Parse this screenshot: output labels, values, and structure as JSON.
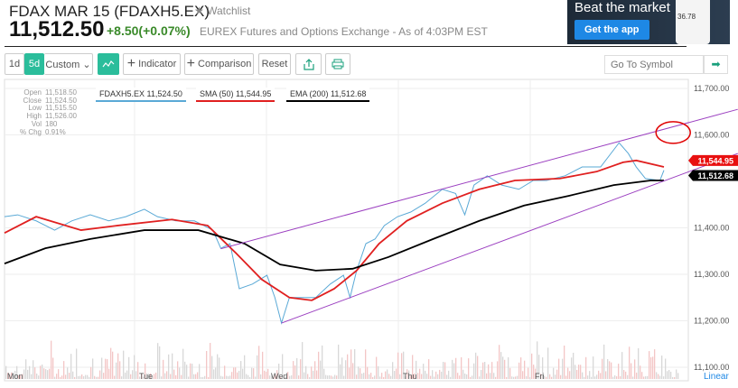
{
  "header": {
    "title": "FDAX MAR 15 (FDAXH5.EX)",
    "watchlist": "★ Watchlist",
    "price": "11,512.50",
    "change": "+8.50(+0.07%)",
    "exchange": "EUREX Futures and Options Exchange - As of 4:03PM EST"
  },
  "ad": {
    "headline": "Beat the market",
    "button": "Get the app",
    "phone_value": "36.78"
  },
  "toolbar": {
    "range_1d": "1d",
    "range_5d": "5d",
    "custom": "Custom ⌄",
    "chart_type_icon": "line-chart-icon",
    "indicator": "Indicator",
    "comparison": "Comparison",
    "reset": "Reset",
    "share_icon": "share-icon",
    "print_icon": "print-icon",
    "goto_placeholder": "Go To Symbol",
    "go_icon": "arrow-right-icon"
  },
  "ohlc": [
    {
      "k": "Open",
      "v": "11,518.50"
    },
    {
      "k": "Close",
      "v": "11,524.50"
    },
    {
      "k": "Low",
      "v": "11,515.50"
    },
    {
      "k": "High",
      "v": "11,526.00"
    },
    {
      "k": "Vol",
      "v": "180"
    },
    {
      "k": "% Chg",
      "v": "0.91%"
    }
  ],
  "legend": {
    "price": "FDAXH5.EX 11,524.50",
    "sma": "SMA (50) 11,544.95",
    "ema": "EMA (200) 11,512.68"
  },
  "scale_label": "Linear",
  "chart_data": {
    "type": "line",
    "x_unit": "days from Mon",
    "xticks": [
      {
        "t": 0,
        "label": "Mon"
      },
      {
        "t": 1,
        "label": "Tue"
      },
      {
        "t": 2,
        "label": "Wed"
      },
      {
        "t": 3,
        "label": "Thu"
      },
      {
        "t": 4,
        "label": "Fri"
      }
    ],
    "yticks": [
      11100,
      11200,
      11300,
      11400,
      11600,
      11700
    ],
    "ytick_labels": [
      "11,100.00",
      "11,200.00",
      "11,300.00",
      "11,400.00",
      "11,600.00",
      "11,700.00"
    ],
    "ylim": [
      11085,
      11720
    ],
    "xlim": [
      0,
      5.2
    ],
    "grid": true,
    "colors": {
      "price": "#5aa9d6",
      "sma": "#e02020",
      "ema": "#000000",
      "channel": "#9b3fc0",
      "annotation": "#e00000"
    },
    "series": [
      {
        "name": "FDAXH5.EX",
        "key": "price",
        "points": [
          [
            0,
            11424
          ],
          [
            0.1,
            11428
          ],
          [
            0.24,
            11415
          ],
          [
            0.38,
            11395
          ],
          [
            0.51,
            11415
          ],
          [
            0.65,
            11428
          ],
          [
            0.79,
            11415
          ],
          [
            0.92,
            11424
          ],
          [
            1.06,
            11440
          ],
          [
            1.16,
            11424
          ],
          [
            1.3,
            11415
          ],
          [
            1.44,
            11415
          ],
          [
            1.58,
            11395
          ],
          [
            1.64,
            11356
          ],
          [
            1.71,
            11366
          ],
          [
            1.78,
            11269
          ],
          [
            1.88,
            11279
          ],
          [
            1.99,
            11298
          ],
          [
            2.05,
            11250
          ],
          [
            2.1,
            11195
          ],
          [
            2.16,
            11250
          ],
          [
            2.26,
            11250
          ],
          [
            2.36,
            11250
          ],
          [
            2.47,
            11279
          ],
          [
            2.57,
            11298
          ],
          [
            2.62,
            11250
          ],
          [
            2.67,
            11308
          ],
          [
            2.74,
            11366
          ],
          [
            2.81,
            11376
          ],
          [
            2.88,
            11405
          ],
          [
            2.98,
            11424
          ],
          [
            3.08,
            11434
          ],
          [
            3.19,
            11453
          ],
          [
            3.32,
            11483
          ],
          [
            3.42,
            11474
          ],
          [
            3.49,
            11428
          ],
          [
            3.56,
            11492
          ],
          [
            3.66,
            11512
          ],
          [
            3.77,
            11492
          ],
          [
            3.9,
            11483
          ],
          [
            4.01,
            11502
          ],
          [
            4.11,
            11502
          ],
          [
            4.25,
            11512
          ],
          [
            4.38,
            11531
          ],
          [
            4.52,
            11531
          ],
          [
            4.66,
            11583
          ],
          [
            4.73,
            11560
          ],
          [
            4.79,
            11531
          ],
          [
            4.86,
            11506
          ],
          [
            4.97,
            11502
          ],
          [
            5.0,
            11524
          ]
        ]
      },
      {
        "name": "SMA (50)",
        "key": "sma",
        "points": [
          [
            0,
            11389
          ],
          [
            0.24,
            11424
          ],
          [
            0.58,
            11395
          ],
          [
            0.86,
            11405
          ],
          [
            1.27,
            11418
          ],
          [
            1.54,
            11405
          ],
          [
            1.75,
            11347
          ],
          [
            1.95,
            11289
          ],
          [
            2.16,
            11250
          ],
          [
            2.33,
            11244
          ],
          [
            2.5,
            11269
          ],
          [
            2.67,
            11308
          ],
          [
            2.84,
            11366
          ],
          [
            3.05,
            11415
          ],
          [
            3.32,
            11453
          ],
          [
            3.6,
            11483
          ],
          [
            3.87,
            11502
          ],
          [
            4.21,
            11506
          ],
          [
            4.49,
            11521
          ],
          [
            4.69,
            11541
          ],
          [
            4.79,
            11545
          ],
          [
            5.0,
            11531
          ]
        ]
      },
      {
        "name": "EMA (200)",
        "key": "ema",
        "points": [
          [
            0,
            11323
          ],
          [
            0.31,
            11356
          ],
          [
            0.65,
            11376
          ],
          [
            1.06,
            11395
          ],
          [
            1.47,
            11395
          ],
          [
            1.82,
            11366
          ],
          [
            2.09,
            11321
          ],
          [
            2.36,
            11308
          ],
          [
            2.64,
            11312
          ],
          [
            2.91,
            11337
          ],
          [
            3.25,
            11376
          ],
          [
            3.6,
            11415
          ],
          [
            3.94,
            11448
          ],
          [
            4.28,
            11469
          ],
          [
            4.62,
            11492
          ],
          [
            4.9,
            11502
          ],
          [
            5.0,
            11502
          ]
        ]
      }
    ],
    "last_value_badges": [
      {
        "key": "sma",
        "label": "11,544.95",
        "value": 11544.95
      },
      {
        "key": "ema",
        "label": "11,512.68",
        "value": 11512.68
      }
    ],
    "annotations": [
      {
        "type": "trendline",
        "from": [
          1.64,
          11355
        ],
        "to": [
          5.56,
          11655
        ]
      },
      {
        "type": "trendline",
        "from": [
          2.1,
          11195
        ],
        "to": [
          5.56,
          11560
        ]
      },
      {
        "type": "ellipse",
        "center": [
          5.07,
          11605
        ]
      }
    ]
  }
}
